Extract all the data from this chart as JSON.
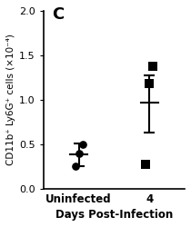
{
  "panel_label": "C",
  "title": "",
  "ylabel": "CD11b⁺ Ly6G⁺ cells (×10⁻⁴)",
  "xlabel": "Days Post-Infection",
  "xlabels": [
    "Uninfected",
    "4"
  ],
  "x_positions": [
    0,
    1
  ],
  "uninfected_points": [
    0.25,
    0.4,
    0.5
  ],
  "uninfected_mean": 0.385,
  "uninfected_sd_upper": 0.51,
  "uninfected_sd_lower": 0.26,
  "day4_points": [
    0.28,
    1.18,
    1.38
  ],
  "day4_mean": 0.967,
  "day4_sd_upper": 1.27,
  "day4_sd_lower": 0.63,
  "ylim": [
    0.0,
    2.0
  ],
  "yticks": [
    0.0,
    0.5,
    1.0,
    1.5,
    2.0
  ],
  "marker_circle": "o",
  "marker_square": "s",
  "marker_size": 7,
  "color": "black",
  "figsize": [
    2.1,
    2.5
  ],
  "dpi": 100
}
